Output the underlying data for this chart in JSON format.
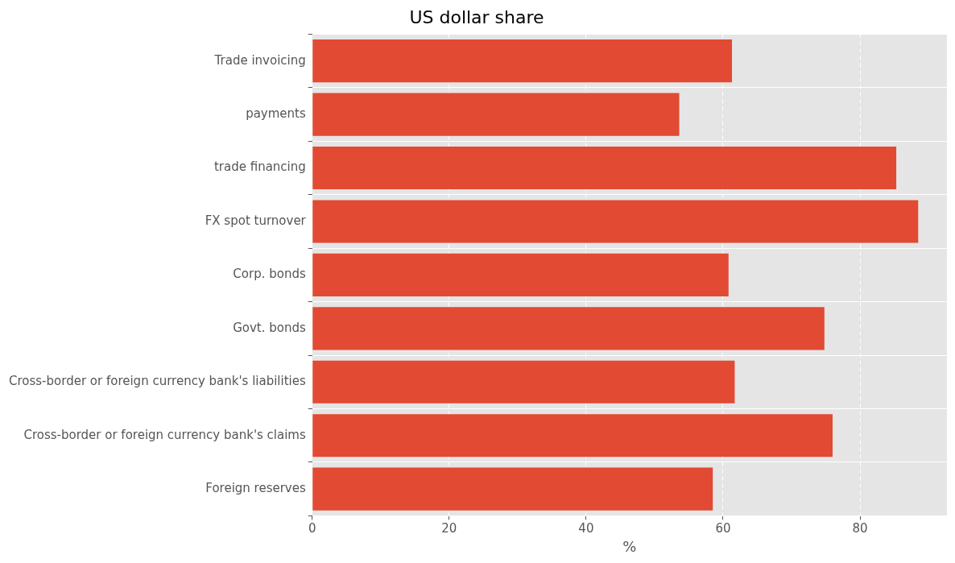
{
  "chart_data": {
    "type": "bar",
    "orientation": "horizontal",
    "title": "US dollar share",
    "xlabel": "%",
    "categories": [
      "Trade invoicing",
      "payments",
      "trade financing",
      "FX spot turnover",
      "Corp. bonds",
      "Govt. bonds",
      "Cross-border or foreign currency bank's liabilities",
      "Cross-border or foreign currency bank's claims",
      "Foreign reserves"
    ],
    "values": [
      61.3,
      53.6,
      85.3,
      88.5,
      60.8,
      74.8,
      61.7,
      76.0,
      58.5
    ],
    "color": "#e24a33",
    "xlim": [
      0,
      92.7
    ],
    "xticks": [
      0,
      20,
      40,
      60,
      80
    ],
    "grid": true,
    "legend": false
  }
}
